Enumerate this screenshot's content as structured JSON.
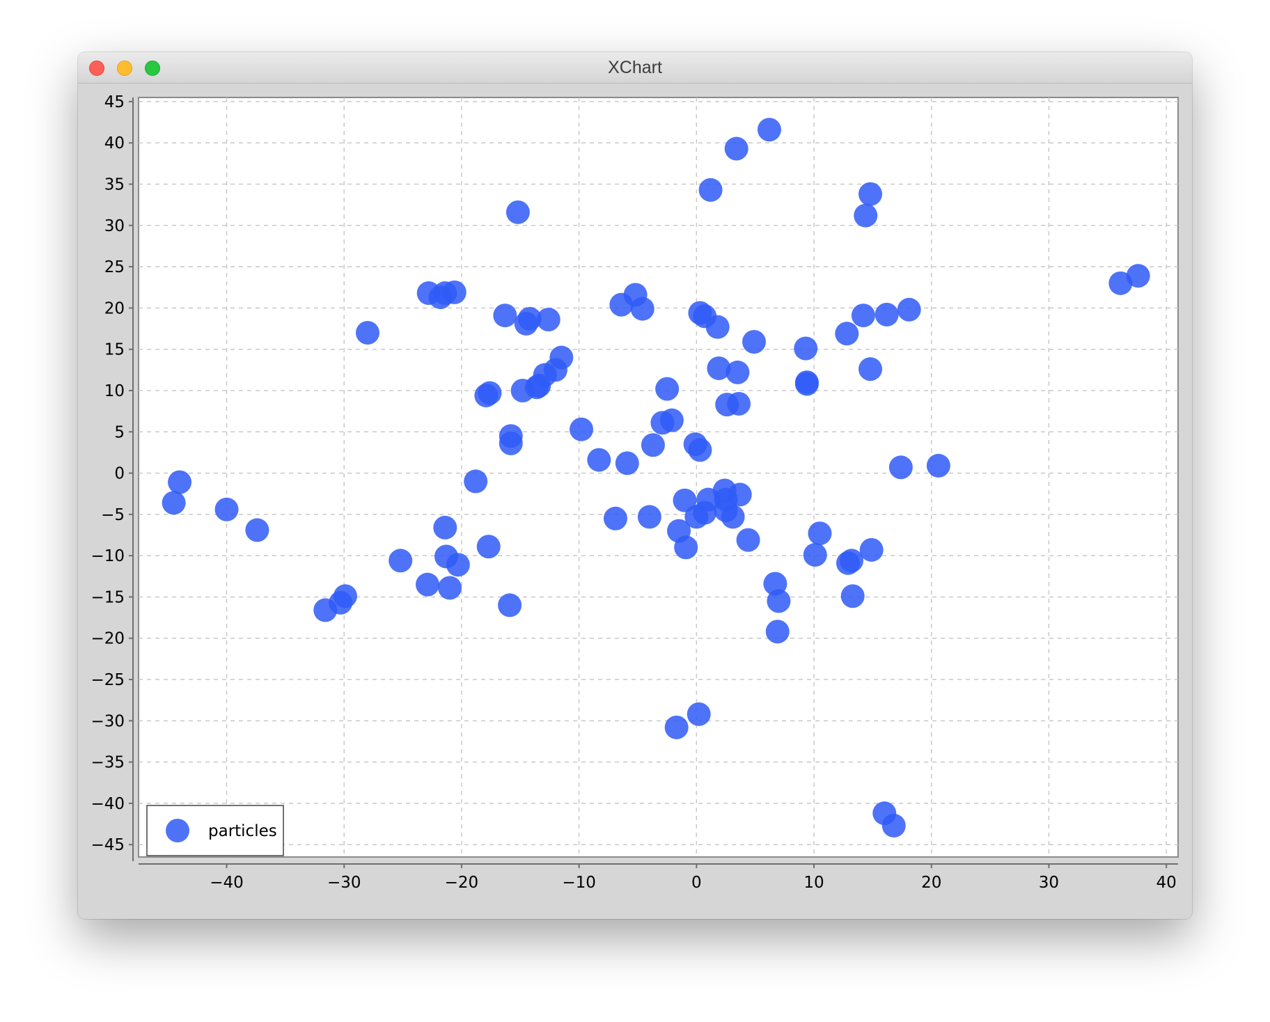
{
  "window": {
    "title": "XChart"
  },
  "colors": {
    "marker": "#2f5af7",
    "marker_opacity": 0.85,
    "plot_background": "#ffffff",
    "window_background": "#d6d6d6",
    "grid": "#c8c8c8"
  },
  "chart_data": {
    "type": "scatter",
    "title": "",
    "xlabel": "",
    "ylabel": "",
    "xlim": [
      -47.5,
      41
    ],
    "ylim": [
      -46.5,
      45.5
    ],
    "x_ticks": [
      -40,
      -30,
      -20,
      -10,
      0,
      10,
      20,
      30,
      40
    ],
    "y_ticks": [
      45,
      40,
      35,
      30,
      25,
      20,
      15,
      10,
      5,
      0,
      -5,
      -10,
      -15,
      -20,
      -25,
      -30,
      -35,
      -40,
      -45
    ],
    "x_tick_labels": [
      "−40",
      "−30",
      "−20",
      "−10",
      "0",
      "10",
      "20",
      "30",
      "40"
    ],
    "y_tick_labels": [
      "45",
      "40",
      "35",
      "30",
      "25",
      "20",
      "15",
      "10",
      "5",
      "0",
      "−5",
      "−10",
      "−15",
      "−20",
      "−25",
      "−30",
      "−35",
      "−40",
      "−45"
    ],
    "grid": true,
    "legend": {
      "position": "bottom-left",
      "entries": [
        "particles"
      ]
    },
    "series": [
      {
        "name": "particles",
        "points": [
          [
            6.2,
            41.6
          ],
          [
            3.4,
            39.3
          ],
          [
            1.2,
            34.3
          ],
          [
            14.8,
            33.8
          ],
          [
            14.4,
            31.2
          ],
          [
            -15.2,
            31.6
          ],
          [
            36.1,
            23.0
          ],
          [
            37.6,
            23.9
          ],
          [
            -22.8,
            21.8
          ],
          [
            -21.8,
            21.3
          ],
          [
            -21.4,
            21.8
          ],
          [
            -20.6,
            21.9
          ],
          [
            -28.0,
            17.0
          ],
          [
            -16.3,
            19.1
          ],
          [
            -14.2,
            18.7
          ],
          [
            -14.5,
            18.1
          ],
          [
            -12.6,
            18.6
          ],
          [
            -6.4,
            20.4
          ],
          [
            -5.2,
            21.6
          ],
          [
            -4.6,
            19.9
          ],
          [
            0.3,
            19.4
          ],
          [
            0.7,
            19.0
          ],
          [
            1.8,
            17.7
          ],
          [
            4.9,
            15.9
          ],
          [
            9.3,
            15.1
          ],
          [
            12.8,
            16.9
          ],
          [
            14.2,
            19.1
          ],
          [
            16.2,
            19.2
          ],
          [
            18.1,
            19.8
          ],
          [
            14.8,
            12.6
          ],
          [
            9.4,
            11.0
          ],
          [
            9.4,
            10.8
          ],
          [
            -11.5,
            14.0
          ],
          [
            -12.0,
            12.5
          ],
          [
            -12.9,
            11.9
          ],
          [
            -13.4,
            10.6
          ],
          [
            -13.6,
            10.4
          ],
          [
            -14.8,
            10.0
          ],
          [
            -17.6,
            9.7
          ],
          [
            -17.9,
            9.4
          ],
          [
            -2.5,
            10.2
          ],
          [
            1.9,
            12.7
          ],
          [
            3.5,
            12.2
          ],
          [
            2.6,
            8.3
          ],
          [
            3.6,
            8.4
          ],
          [
            -2.9,
            6.1
          ],
          [
            -2.1,
            6.4
          ],
          [
            -9.8,
            5.3
          ],
          [
            -15.8,
            4.5
          ],
          [
            -15.8,
            3.6
          ],
          [
            -3.7,
            3.4
          ],
          [
            -0.1,
            3.5
          ],
          [
            0.3,
            2.8
          ],
          [
            -8.3,
            1.6
          ],
          [
            -5.9,
            1.2
          ],
          [
            -18.8,
            -1.0
          ],
          [
            17.4,
            0.7
          ],
          [
            20.6,
            0.9
          ],
          [
            -44.0,
            -1.1
          ],
          [
            -44.5,
            -3.6
          ],
          [
            -40.0,
            -4.4
          ],
          [
            -37.4,
            -6.9
          ],
          [
            -21.4,
            -6.6
          ],
          [
            -17.7,
            -8.9
          ],
          [
            -21.3,
            -10.1
          ],
          [
            -20.3,
            -11.1
          ],
          [
            -25.2,
            -10.6
          ],
          [
            -22.9,
            -13.5
          ],
          [
            -21.0,
            -13.9
          ],
          [
            -15.9,
            -16.0
          ],
          [
            -31.6,
            -16.6
          ],
          [
            -30.3,
            -15.7
          ],
          [
            -29.9,
            -14.9
          ],
          [
            -6.9,
            -5.5
          ],
          [
            -4.0,
            -5.3
          ],
          [
            -1.0,
            -3.3
          ],
          [
            1.0,
            -3.2
          ],
          [
            2.4,
            -2.1
          ],
          [
            2.5,
            -3.2
          ],
          [
            3.7,
            -2.6
          ],
          [
            2.5,
            -4.5
          ],
          [
            0.0,
            -5.3
          ],
          [
            0.7,
            -4.8
          ],
          [
            3.1,
            -5.3
          ],
          [
            -1.5,
            -7.0
          ],
          [
            -0.9,
            -9.0
          ],
          [
            4.4,
            -8.1
          ],
          [
            10.5,
            -7.3
          ],
          [
            10.1,
            -9.9
          ],
          [
            12.9,
            -10.9
          ],
          [
            13.2,
            -10.6
          ],
          [
            14.9,
            -9.3
          ],
          [
            13.3,
            -14.9
          ],
          [
            6.7,
            -13.4
          ],
          [
            7.0,
            -15.5
          ],
          [
            6.9,
            -19.2
          ],
          [
            0.2,
            -29.2
          ],
          [
            -1.7,
            -30.8
          ],
          [
            16.0,
            -41.2
          ],
          [
            16.8,
            -42.7
          ]
        ]
      }
    ]
  }
}
